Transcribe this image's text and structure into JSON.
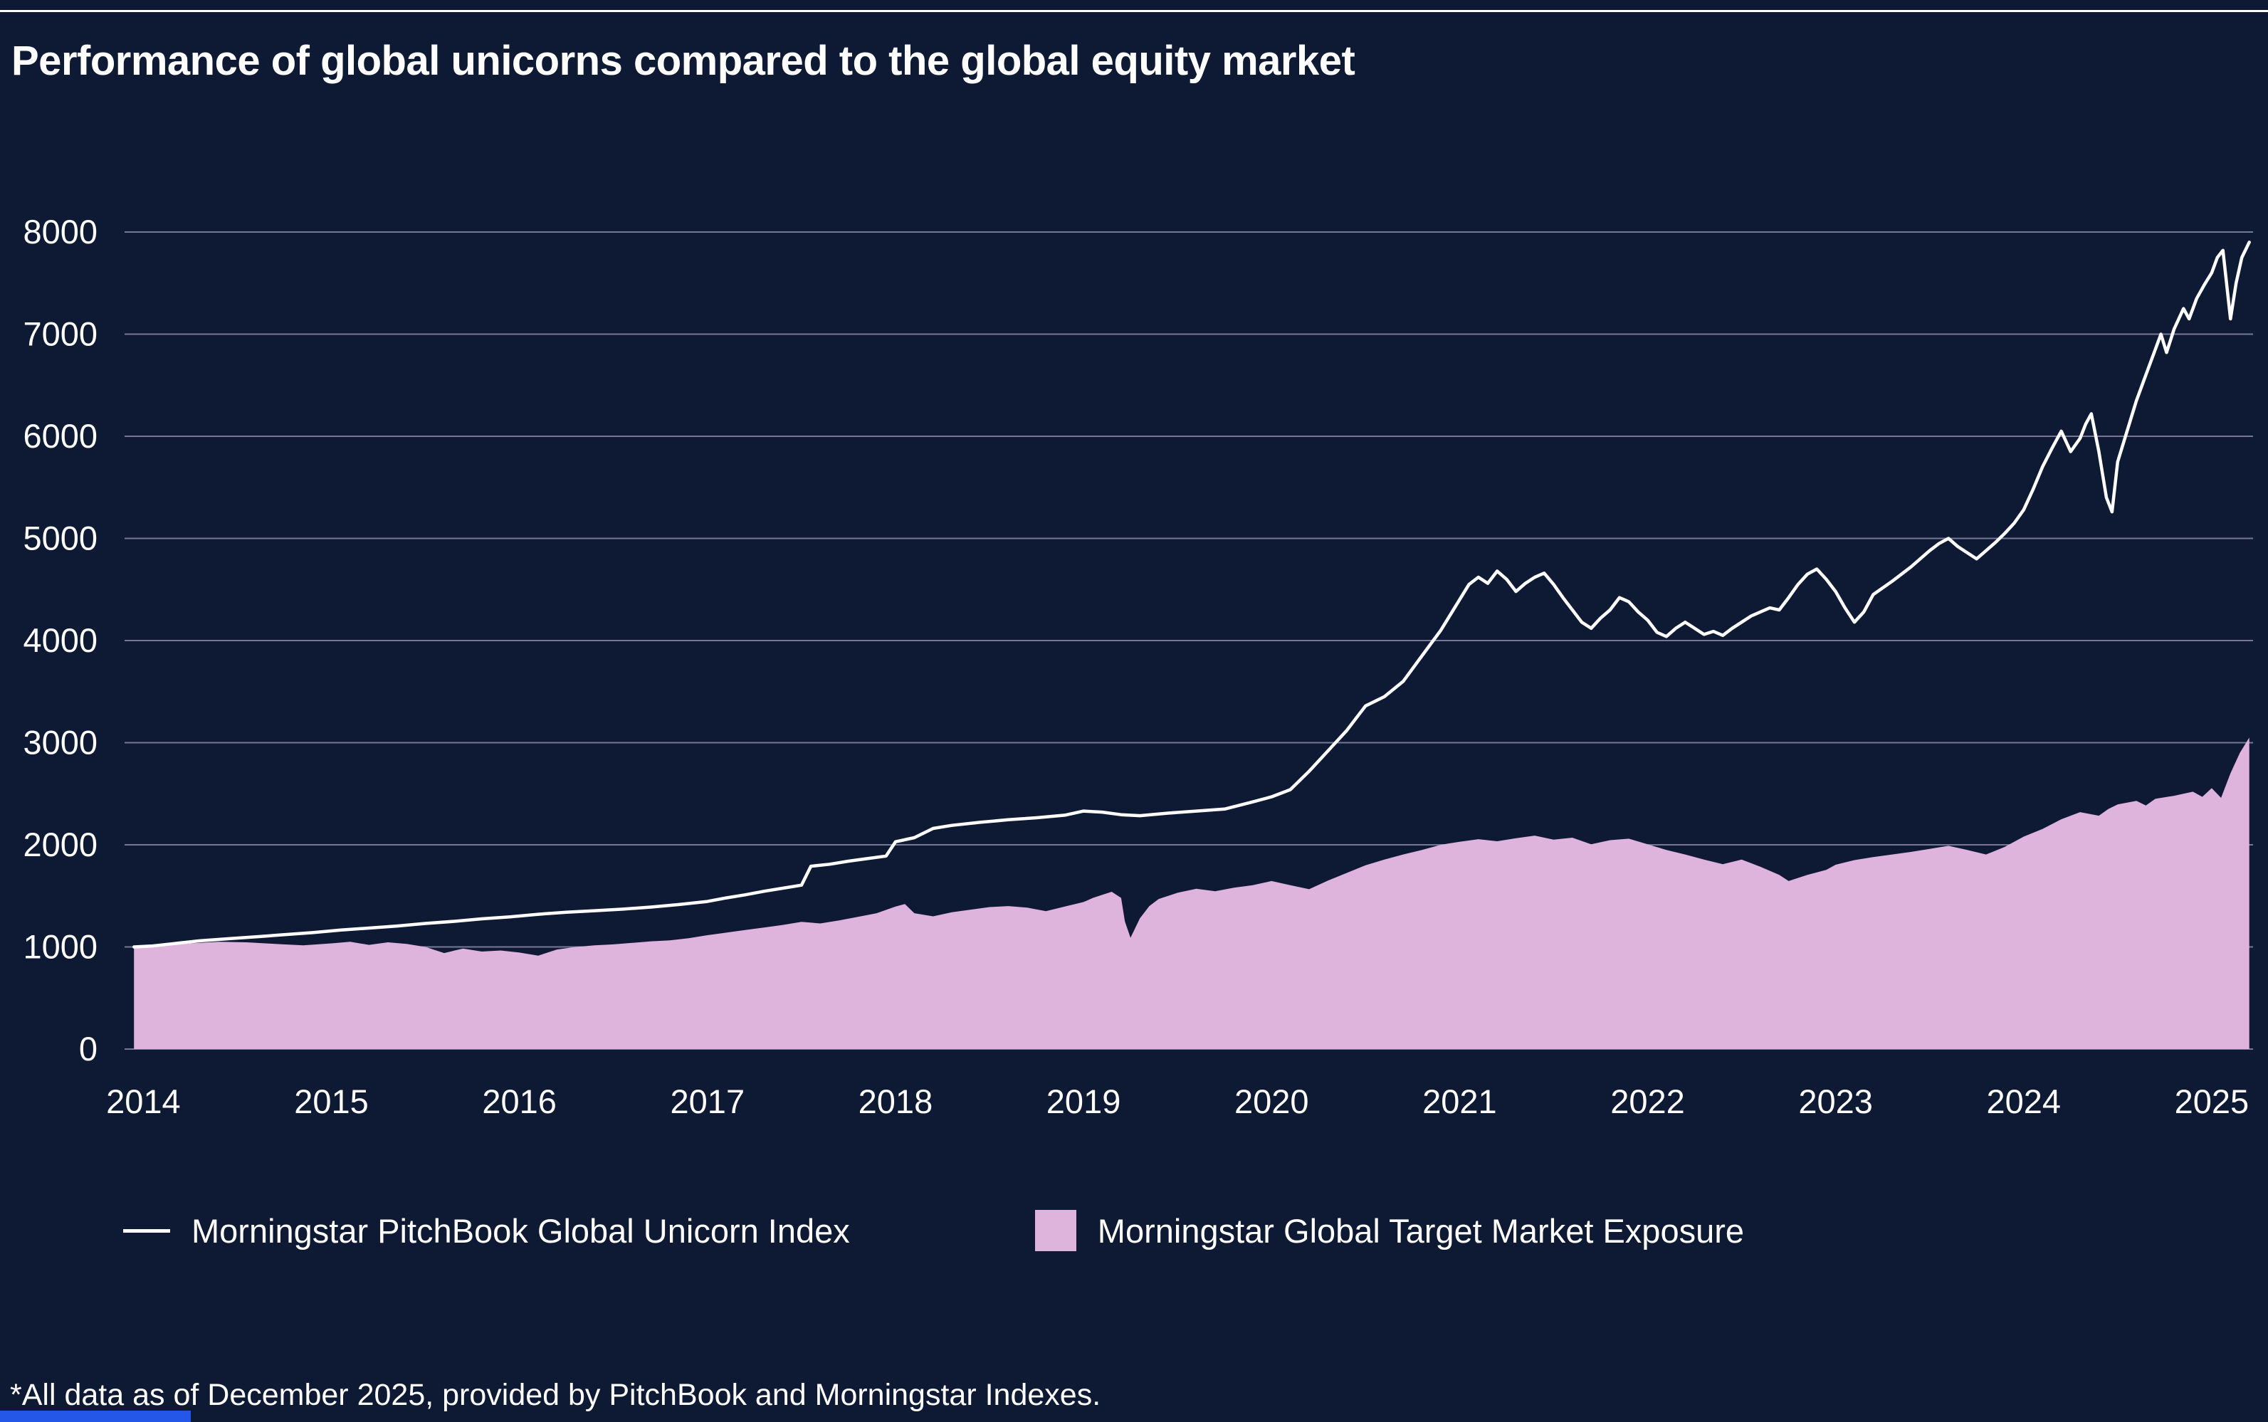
{
  "page": {
    "title": "Performance of global unicorns compared to the global equity market",
    "footnote": "*All data as of December 2025, provided by PitchBook and Morningstar Indexes."
  },
  "colors": {
    "background": "#0E1A33",
    "grid": "#8B87A8",
    "text": "#FFFFFF",
    "line": "#FFFFFF",
    "area": "#DEB3DC",
    "accent_bar": "#2456E8",
    "top_rule": "#FFFFFF"
  },
  "legend": [
    {
      "label": "Morningstar PitchBook Global Unicorn Index",
      "type": "line",
      "color": "#FFFFFF"
    },
    {
      "label": "Morningstar Global Target Market Exposure",
      "type": "area",
      "color": "#DEB3DC"
    }
  ],
  "chart_data": {
    "type": "line+area",
    "title": "Performance of global unicorns compared to the global equity market",
    "xlabel": "",
    "ylabel": "",
    "grid": true,
    "legend_position": "bottom",
    "xlim": [
      2013.9,
      2025.22
    ],
    "ylim": [
      0,
      8000
    ],
    "y_ticks": [
      0,
      1000,
      2000,
      3000,
      4000,
      5000,
      6000,
      7000,
      8000
    ],
    "x_ticks": [
      2014,
      2015,
      2016,
      2017,
      2018,
      2019,
      2020,
      2021,
      2022,
      2023,
      2024,
      2025
    ],
    "series": [
      {
        "name": "Morningstar PitchBook Global Unicorn Index",
        "type": "line",
        "color": "#FFFFFF",
        "points": [
          [
            2013.95,
            1000
          ],
          [
            2014.05,
            1010
          ],
          [
            2014.15,
            1030
          ],
          [
            2014.3,
            1060
          ],
          [
            2014.45,
            1080
          ],
          [
            2014.6,
            1100
          ],
          [
            2014.75,
            1120
          ],
          [
            2014.9,
            1140
          ],
          [
            2015.05,
            1165
          ],
          [
            2015.2,
            1185
          ],
          [
            2015.35,
            1205
          ],
          [
            2015.5,
            1230
          ],
          [
            2015.65,
            1250
          ],
          [
            2015.8,
            1275
          ],
          [
            2015.95,
            1295
          ],
          [
            2016.1,
            1320
          ],
          [
            2016.25,
            1340
          ],
          [
            2016.4,
            1355
          ],
          [
            2016.55,
            1370
          ],
          [
            2016.7,
            1390
          ],
          [
            2016.85,
            1415
          ],
          [
            2017.0,
            1445
          ],
          [
            2017.1,
            1480
          ],
          [
            2017.2,
            1510
          ],
          [
            2017.3,
            1545
          ],
          [
            2017.4,
            1575
          ],
          [
            2017.5,
            1605
          ],
          [
            2017.55,
            1790
          ],
          [
            2017.65,
            1810
          ],
          [
            2017.75,
            1840
          ],
          [
            2017.85,
            1865
          ],
          [
            2017.95,
            1890
          ],
          [
            2018.0,
            2030
          ],
          [
            2018.1,
            2070
          ],
          [
            2018.2,
            2160
          ],
          [
            2018.3,
            2190
          ],
          [
            2018.45,
            2220
          ],
          [
            2018.6,
            2245
          ],
          [
            2018.75,
            2265
          ],
          [
            2018.9,
            2290
          ],
          [
            2019.0,
            2330
          ],
          [
            2019.1,
            2320
          ],
          [
            2019.2,
            2295
          ],
          [
            2019.3,
            2285
          ],
          [
            2019.45,
            2310
          ],
          [
            2019.6,
            2330
          ],
          [
            2019.75,
            2350
          ],
          [
            2019.9,
            2420
          ],
          [
            2020.0,
            2470
          ],
          [
            2020.1,
            2540
          ],
          [
            2020.2,
            2720
          ],
          [
            2020.3,
            2920
          ],
          [
            2020.4,
            3120
          ],
          [
            2020.5,
            3360
          ],
          [
            2020.6,
            3450
          ],
          [
            2020.7,
            3600
          ],
          [
            2020.8,
            3850
          ],
          [
            2020.9,
            4100
          ],
          [
            2021.0,
            4400
          ],
          [
            2021.05,
            4550
          ],
          [
            2021.1,
            4620
          ],
          [
            2021.15,
            4560
          ],
          [
            2021.2,
            4680
          ],
          [
            2021.25,
            4600
          ],
          [
            2021.3,
            4480
          ],
          [
            2021.35,
            4560
          ],
          [
            2021.4,
            4620
          ],
          [
            2021.45,
            4660
          ],
          [
            2021.5,
            4550
          ],
          [
            2021.55,
            4420
          ],
          [
            2021.6,
            4300
          ],
          [
            2021.65,
            4180
          ],
          [
            2021.7,
            4120
          ],
          [
            2021.75,
            4220
          ],
          [
            2021.8,
            4300
          ],
          [
            2021.85,
            4420
          ],
          [
            2021.9,
            4380
          ],
          [
            2021.95,
            4280
          ],
          [
            2022.0,
            4200
          ],
          [
            2022.05,
            4080
          ],
          [
            2022.1,
            4040
          ],
          [
            2022.15,
            4120
          ],
          [
            2022.2,
            4180
          ],
          [
            2022.25,
            4120
          ],
          [
            2022.3,
            4060
          ],
          [
            2022.35,
            4090
          ],
          [
            2022.4,
            4050
          ],
          [
            2022.45,
            4120
          ],
          [
            2022.5,
            4180
          ],
          [
            2022.55,
            4240
          ],
          [
            2022.6,
            4280
          ],
          [
            2022.65,
            4320
          ],
          [
            2022.7,
            4300
          ],
          [
            2022.75,
            4420
          ],
          [
            2022.8,
            4550
          ],
          [
            2022.85,
            4650
          ],
          [
            2022.9,
            4700
          ],
          [
            2022.95,
            4600
          ],
          [
            2023.0,
            4480
          ],
          [
            2023.05,
            4320
          ],
          [
            2023.1,
            4180
          ],
          [
            2023.15,
            4280
          ],
          [
            2023.2,
            4450
          ],
          [
            2023.3,
            4580
          ],
          [
            2023.4,
            4720
          ],
          [
            2023.5,
            4880
          ],
          [
            2023.55,
            4950
          ],
          [
            2023.6,
            5000
          ],
          [
            2023.65,
            4920
          ],
          [
            2023.7,
            4860
          ],
          [
            2023.75,
            4800
          ],
          [
            2023.8,
            4880
          ],
          [
            2023.85,
            4960
          ],
          [
            2023.9,
            5050
          ],
          [
            2023.95,
            5150
          ],
          [
            2024.0,
            5280
          ],
          [
            2024.05,
            5480
          ],
          [
            2024.1,
            5700
          ],
          [
            2024.15,
            5880
          ],
          [
            2024.2,
            6050
          ],
          [
            2024.25,
            5850
          ],
          [
            2024.3,
            5980
          ],
          [
            2024.33,
            6120
          ],
          [
            2024.36,
            6220
          ],
          [
            2024.4,
            5850
          ],
          [
            2024.44,
            5400
          ],
          [
            2024.47,
            5260
          ],
          [
            2024.5,
            5750
          ],
          [
            2024.55,
            6050
          ],
          [
            2024.6,
            6350
          ],
          [
            2024.65,
            6600
          ],
          [
            2024.7,
            6850
          ],
          [
            2024.73,
            7000
          ],
          [
            2024.76,
            6820
          ],
          [
            2024.8,
            7050
          ],
          [
            2024.85,
            7250
          ],
          [
            2024.88,
            7150
          ],
          [
            2024.92,
            7350
          ],
          [
            2024.96,
            7480
          ],
          [
            2025.0,
            7600
          ],
          [
            2025.03,
            7750
          ],
          [
            2025.06,
            7820
          ],
          [
            2025.1,
            7150
          ],
          [
            2025.13,
            7500
          ],
          [
            2025.16,
            7750
          ],
          [
            2025.2,
            7900
          ]
        ]
      },
      {
        "name": "Morningstar Global Target Market Exposure",
        "type": "area",
        "color": "#DEB3DC",
        "points": [
          [
            2013.95,
            1000
          ],
          [
            2014.1,
            1015
          ],
          [
            2014.25,
            1035
          ],
          [
            2014.4,
            1050
          ],
          [
            2014.55,
            1045
          ],
          [
            2014.7,
            1030
          ],
          [
            2014.85,
            1015
          ],
          [
            2015.0,
            1035
          ],
          [
            2015.1,
            1050
          ],
          [
            2015.2,
            1020
          ],
          [
            2015.3,
            1045
          ],
          [
            2015.4,
            1030
          ],
          [
            2015.5,
            1000
          ],
          [
            2015.6,
            940
          ],
          [
            2015.7,
            985
          ],
          [
            2015.8,
            955
          ],
          [
            2015.9,
            965
          ],
          [
            2016.0,
            945
          ],
          [
            2016.1,
            915
          ],
          [
            2016.2,
            975
          ],
          [
            2016.3,
            1000
          ],
          [
            2016.4,
            1015
          ],
          [
            2016.5,
            1025
          ],
          [
            2016.6,
            1040
          ],
          [
            2016.7,
            1055
          ],
          [
            2016.8,
            1065
          ],
          [
            2016.9,
            1085
          ],
          [
            2017.0,
            1115
          ],
          [
            2017.1,
            1140
          ],
          [
            2017.2,
            1165
          ],
          [
            2017.3,
            1190
          ],
          [
            2017.4,
            1215
          ],
          [
            2017.5,
            1245
          ],
          [
            2017.6,
            1230
          ],
          [
            2017.7,
            1260
          ],
          [
            2017.8,
            1295
          ],
          [
            2017.9,
            1330
          ],
          [
            2018.0,
            1395
          ],
          [
            2018.05,
            1420
          ],
          [
            2018.1,
            1330
          ],
          [
            2018.2,
            1300
          ],
          [
            2018.3,
            1340
          ],
          [
            2018.4,
            1365
          ],
          [
            2018.5,
            1390
          ],
          [
            2018.6,
            1400
          ],
          [
            2018.7,
            1385
          ],
          [
            2018.8,
            1350
          ],
          [
            2018.9,
            1395
          ],
          [
            2019.0,
            1440
          ],
          [
            2019.05,
            1480
          ],
          [
            2019.1,
            1510
          ],
          [
            2019.15,
            1540
          ],
          [
            2019.2,
            1480
          ],
          [
            2019.22,
            1250
          ],
          [
            2019.25,
            1090
          ],
          [
            2019.3,
            1280
          ],
          [
            2019.35,
            1400
          ],
          [
            2019.4,
            1470
          ],
          [
            2019.5,
            1530
          ],
          [
            2019.6,
            1570
          ],
          [
            2019.7,
            1545
          ],
          [
            2019.8,
            1580
          ],
          [
            2019.9,
            1605
          ],
          [
            2020.0,
            1645
          ],
          [
            2020.1,
            1605
          ],
          [
            2020.2,
            1565
          ],
          [
            2020.3,
            1650
          ],
          [
            2020.4,
            1725
          ],
          [
            2020.5,
            1800
          ],
          [
            2020.6,
            1855
          ],
          [
            2020.7,
            1905
          ],
          [
            2020.8,
            1950
          ],
          [
            2020.9,
            2000
          ],
          [
            2021.0,
            2030
          ],
          [
            2021.1,
            2055
          ],
          [
            2021.2,
            2035
          ],
          [
            2021.3,
            2065
          ],
          [
            2021.4,
            2090
          ],
          [
            2021.5,
            2050
          ],
          [
            2021.6,
            2070
          ],
          [
            2021.7,
            2005
          ],
          [
            2021.8,
            2045
          ],
          [
            2021.9,
            2060
          ],
          [
            2022.0,
            2005
          ],
          [
            2022.1,
            1950
          ],
          [
            2022.2,
            1905
          ],
          [
            2022.3,
            1855
          ],
          [
            2022.4,
            1810
          ],
          [
            2022.5,
            1855
          ],
          [
            2022.6,
            1785
          ],
          [
            2022.7,
            1705
          ],
          [
            2022.75,
            1645
          ],
          [
            2022.85,
            1705
          ],
          [
            2022.95,
            1755
          ],
          [
            2023.0,
            1805
          ],
          [
            2023.1,
            1850
          ],
          [
            2023.2,
            1880
          ],
          [
            2023.3,
            1905
          ],
          [
            2023.4,
            1930
          ],
          [
            2023.5,
            1960
          ],
          [
            2023.6,
            1990
          ],
          [
            2023.7,
            1950
          ],
          [
            2023.8,
            1905
          ],
          [
            2023.9,
            1980
          ],
          [
            2024.0,
            2080
          ],
          [
            2024.1,
            2155
          ],
          [
            2024.2,
            2250
          ],
          [
            2024.3,
            2320
          ],
          [
            2024.4,
            2285
          ],
          [
            2024.45,
            2350
          ],
          [
            2024.5,
            2395
          ],
          [
            2024.6,
            2430
          ],
          [
            2024.65,
            2385
          ],
          [
            2024.7,
            2450
          ],
          [
            2024.8,
            2480
          ],
          [
            2024.9,
            2520
          ],
          [
            2024.95,
            2470
          ],
          [
            2025.0,
            2555
          ],
          [
            2025.05,
            2460
          ],
          [
            2025.1,
            2700
          ],
          [
            2025.15,
            2900
          ],
          [
            2025.2,
            3050
          ]
        ]
      }
    ]
  }
}
